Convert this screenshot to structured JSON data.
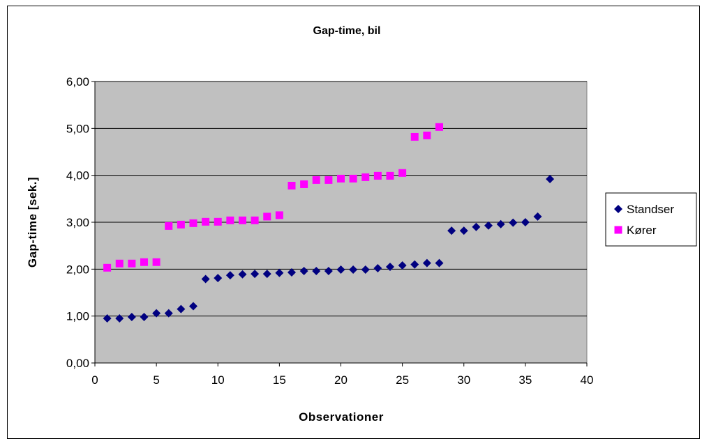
{
  "chart_data": {
    "type": "scatter",
    "title": "Gap-time, bil",
    "xlabel": "Observationer",
    "ylabel": "Gap-time [sek.]",
    "xlim": [
      0,
      40
    ],
    "ylim": [
      0,
      6
    ],
    "xticks": [
      0,
      5,
      10,
      15,
      20,
      25,
      30,
      35,
      40
    ],
    "xtick_labels": [
      "0",
      "5",
      "10",
      "15",
      "20",
      "25",
      "30",
      "35",
      "40"
    ],
    "yticks": [
      0,
      1,
      2,
      3,
      4,
      5,
      6
    ],
    "ytick_labels": [
      "0,00",
      "1,00",
      "2,00",
      "3,00",
      "4,00",
      "5,00",
      "6,00"
    ],
    "grid": "horizontal",
    "plot_background": "#c0c0c0",
    "legend_position": "right",
    "series": [
      {
        "name": "Standser",
        "marker": "diamond",
        "color": "#000080",
        "x": [
          1,
          2,
          3,
          4,
          5,
          6,
          7,
          8,
          9,
          10,
          11,
          12,
          13,
          14,
          15,
          16,
          17,
          18,
          19,
          20,
          21,
          22,
          23,
          24,
          25,
          26,
          27,
          28,
          29,
          30,
          31,
          32,
          33,
          34,
          35,
          36,
          37
        ],
        "y": [
          0.95,
          0.95,
          0.98,
          0.98,
          1.06,
          1.06,
          1.15,
          1.21,
          1.79,
          1.81,
          1.87,
          1.89,
          1.9,
          1.9,
          1.92,
          1.93,
          1.96,
          1.96,
          1.96,
          1.99,
          1.99,
          1.99,
          2.02,
          2.05,
          2.08,
          2.1,
          2.13,
          2.13,
          2.82,
          2.82,
          2.9,
          2.93,
          2.96,
          2.99,
          3.0,
          3.12,
          3.92
        ]
      },
      {
        "name": "Kører",
        "marker": "square",
        "color": "#ff00ff",
        "x": [
          1,
          2,
          3,
          4,
          5,
          6,
          7,
          8,
          9,
          10,
          11,
          12,
          13,
          14,
          15,
          16,
          17,
          18,
          19,
          20,
          21,
          22,
          23,
          24,
          25,
          26,
          27,
          28
        ],
        "y": [
          2.03,
          2.12,
          2.12,
          2.15,
          2.15,
          2.92,
          2.95,
          2.98,
          3.01,
          3.01,
          3.04,
          3.04,
          3.04,
          3.12,
          3.15,
          3.78,
          3.81,
          3.9,
          3.9,
          3.93,
          3.93,
          3.96,
          3.99,
          3.99,
          4.05,
          4.82,
          4.85,
          5.03
        ]
      }
    ]
  }
}
